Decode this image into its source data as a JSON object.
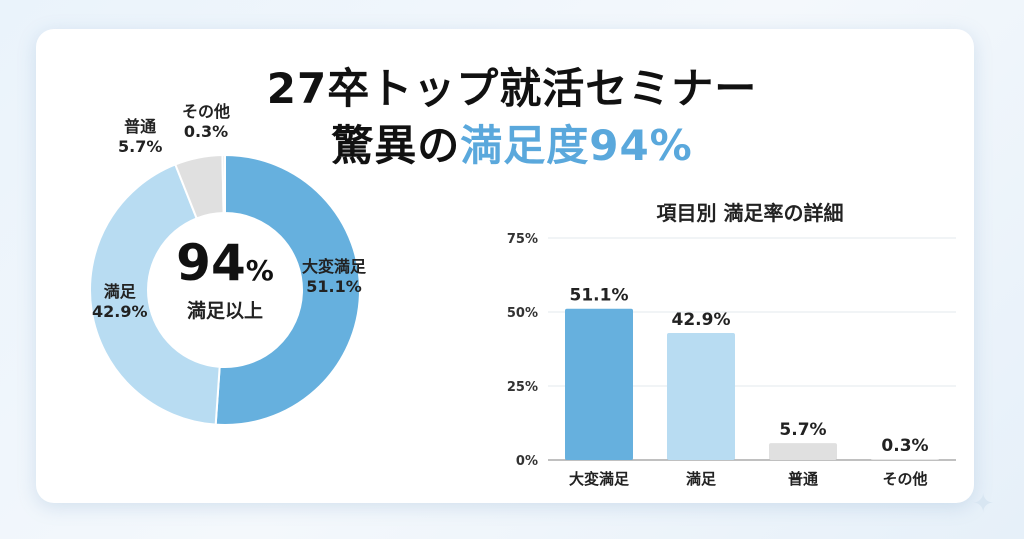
{
  "title": {
    "line1": "27卒トップ就活セミナー",
    "line2_prefix": "驚異の",
    "line2_accent": "満足度94%"
  },
  "donut": {
    "center_value": "94",
    "center_unit": "%",
    "center_label": "満足以上"
  },
  "bar_chart_title": "項目別 満足率の詳細",
  "colors": {
    "very_satisfied": "#66b0de",
    "satisfied": "#b8dcf2",
    "neutral": "#e0e0e0",
    "other": "#e6e6e6",
    "accent": "#5aa8dc"
  },
  "chart_data": [
    {
      "type": "pie",
      "categories": [
        "大変満足",
        "満足",
        "普通",
        "その他"
      ],
      "values": [
        51.1,
        42.9,
        5.7,
        0.3
      ],
      "value_labels": [
        "51.1%",
        "42.9%",
        "5.7%",
        "0.3%"
      ]
    },
    {
      "type": "bar",
      "title": "項目別 満足率の詳細",
      "categories": [
        "大変満足",
        "満足",
        "普通",
        "その他"
      ],
      "values": [
        51.1,
        42.9,
        5.7,
        0.3
      ],
      "value_labels": [
        "51.1%",
        "42.9%",
        "5.7%",
        "0.3%"
      ],
      "ylim": [
        0,
        75
      ],
      "yticks": [
        "0%",
        "25%",
        "50%",
        "75%"
      ],
      "ytick_values": [
        0,
        25,
        50,
        75
      ],
      "grid": true
    }
  ]
}
